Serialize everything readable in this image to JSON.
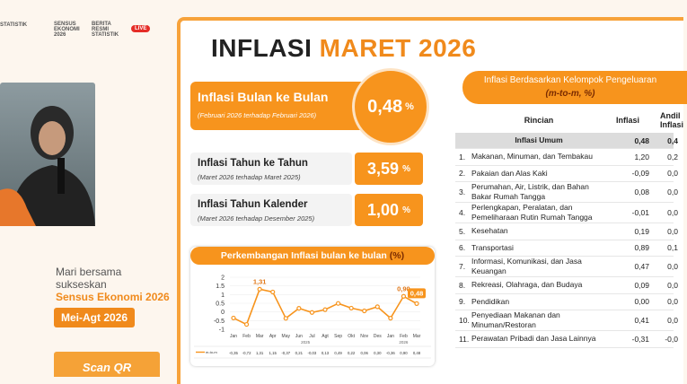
{
  "header": {
    "logo_left": "STATISTIK",
    "logo_sensus": "SENSUS EKONOMI 2026",
    "logo_brs": "BERITA RESMI STATISTIK",
    "live": "LIVE"
  },
  "promo": {
    "line1": "Mari bersama",
    "line2": "sukseskan",
    "highlight": "Sensus Ekonomi 2026",
    "period": "Mei-Agt 2026",
    "cta": "Scan QR"
  },
  "slide": {
    "title_part1": "INFLASI",
    "title_part2": "MARET 2026",
    "mtm": {
      "label": "Inflasi Bulan ke Bulan",
      "note": "(Februari 2026 terhadap Februari 2026)",
      "value": "0,48",
      "unit": "%"
    },
    "yoy": {
      "label": "Inflasi Tahun ke Tahun",
      "note": "(Maret 2026 terhadap Maret 2025)",
      "value": "3,59",
      "unit": "%"
    },
    "ytd": {
      "label": "Inflasi Tahun Kalender",
      "note": "(Maret 2026 terhadap Desember 2025)",
      "value": "1,00",
      "unit": "%"
    }
  },
  "chart_data": {
    "type": "line",
    "title": "Perkembangan Inflasi bulan ke bulan",
    "title_unit": "(%)",
    "categories": [
      "Jan",
      "Feb",
      "Mar",
      "Apr",
      "May",
      "Jun",
      "Jul",
      "Agt",
      "Sep",
      "Okt",
      "Nov",
      "Des",
      "Jan",
      "Feb",
      "Mar"
    ],
    "years": [
      "2025",
      "2026"
    ],
    "series": [
      {
        "name": "m-to-m",
        "color": "#f7941d",
        "values": [
          -0.35,
          -0.72,
          1.31,
          1.15,
          -0.37,
          0.21,
          -0.03,
          0.13,
          0.49,
          0.22,
          0.06,
          0.3,
          -0.36,
          0.9,
          0.48
        ],
        "value_labels": [
          "-0,35",
          "-0,72",
          "1,31",
          "1,15",
          "-0,37",
          "0,21",
          "-0,03",
          "0,13",
          "0,49",
          "0,22",
          "0,06",
          "0,30",
          "-0,36",
          "0,90",
          "0,48"
        ]
      }
    ],
    "ylim": [
      -1,
      2
    ],
    "yticks": [
      -1,
      -0.5,
      0,
      0.5,
      1,
      1.5,
      2
    ],
    "grid": true
  },
  "table": {
    "title": "Inflasi Berdasarkan Kelompok Pengeluaran",
    "title_unit": "(m-to-m, %)",
    "columns": [
      "Rincian",
      "Inflasi",
      "Andil Inflasi"
    ],
    "total": [
      "Inflasi Umum",
      "0,48",
      "0,4"
    ],
    "rows": [
      [
        "1.",
        "Makanan, Minuman, dan Tembakau",
        "1,20",
        "0,2"
      ],
      [
        "2.",
        "Pakaian dan Alas Kaki",
        "-0,09",
        "0,0"
      ],
      [
        "3.",
        "Perumahan, Air, Listrik, dan Bahan Bakar Rumah Tangga",
        "0,08",
        "0,0"
      ],
      [
        "4.",
        "Perlengkapan, Peralatan, dan Pemeliharaan Rutin Rumah Tangga",
        "-0,01",
        "0,0"
      ],
      [
        "5.",
        "Kesehatan",
        "0,19",
        "0,0"
      ],
      [
        "6.",
        "Transportasi",
        "0,89",
        "0,1"
      ],
      [
        "7.",
        "Informasi, Komunikasi, dan Jasa Keuangan",
        "0,47",
        "0,0"
      ],
      [
        "8.",
        "Rekreasi, Olahraga, dan Budaya",
        "0,09",
        "0,0"
      ],
      [
        "9.",
        "Pendidikan",
        "0,00",
        "0,0"
      ],
      [
        "10.",
        "Penyediaan Makanan dan Minuman/Restoran",
        "0,41",
        "0,0"
      ],
      [
        "11.",
        "Perawatan Pribadi dan Jasa Lainnya",
        "-0,31",
        "-0,0"
      ]
    ]
  }
}
